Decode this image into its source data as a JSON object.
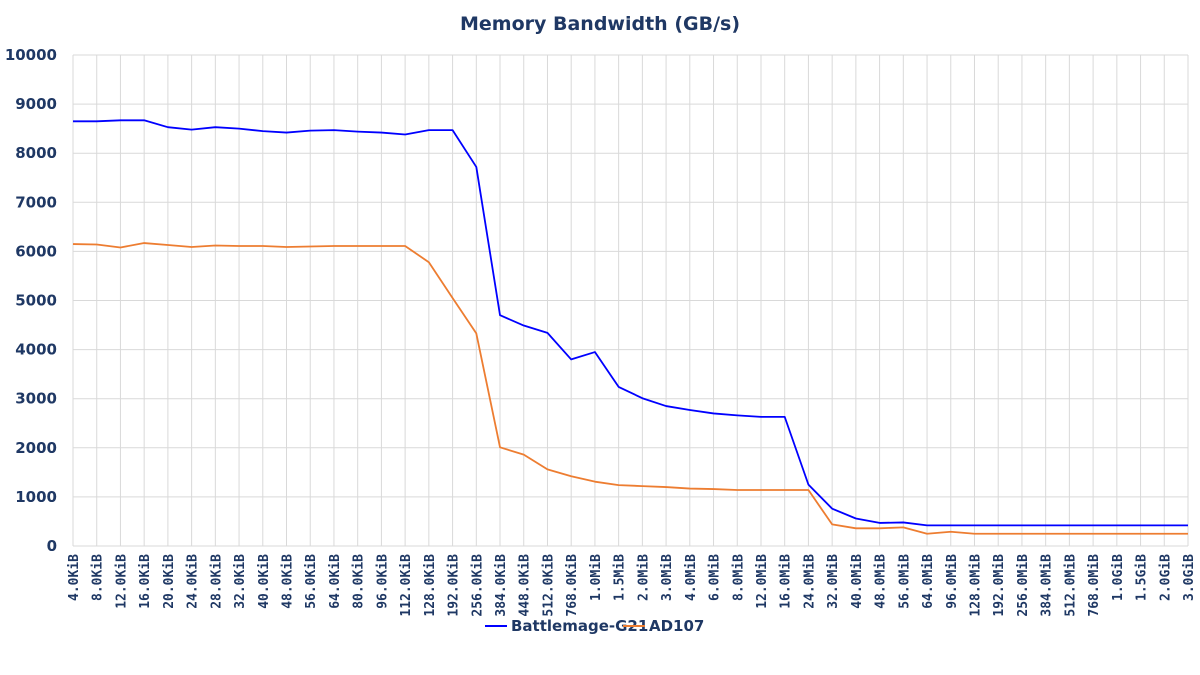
{
  "chart_data": {
    "type": "line",
    "title": "Memory Bandwidth (GB/s)",
    "xlabel": "",
    "ylabel": "",
    "ylim": [
      0,
      10000
    ],
    "yticks": [
      "0",
      "1000",
      "2000",
      "3000",
      "4000",
      "5000",
      "6000",
      "7000",
      "8000",
      "9000",
      "10000"
    ],
    "grid": true,
    "legend_position": "bottom",
    "categories": [
      "4.0KiB",
      "8.0KiB",
      "12.0KiB",
      "16.0KiB",
      "20.0KiB",
      "24.0KiB",
      "28.0KiB",
      "32.0KiB",
      "40.0KiB",
      "48.0KiB",
      "56.0KiB",
      "64.0KiB",
      "80.0KiB",
      "96.0KiB",
      "112.0KiB",
      "128.0KiB",
      "192.0KiB",
      "256.0KiB",
      "384.0KiB",
      "448.0KiB",
      "512.0KiB",
      "768.0KiB",
      "1.0MiB",
      "1.5MiB",
      "2.0MiB",
      "3.0MiB",
      "4.0MiB",
      "6.0MiB",
      "8.0MiB",
      "12.0MiB",
      "16.0MiB",
      "24.0MiB",
      "32.0MiB",
      "40.0MiB",
      "48.0MiB",
      "56.0MiB",
      "64.0MiB",
      "96.0MiB",
      "128.0MiB",
      "192.0MiB",
      "256.0MiB",
      "384.0MiB",
      "512.0MiB",
      "768.0MiB",
      "1.0GiB",
      "1.5GiB",
      "2.0GiB",
      "3.0GiB"
    ],
    "series": [
      {
        "name": "Battlemage-G21",
        "color": "#0000ff",
        "values": [
          8650,
          8650,
          8670,
          8670,
          8530,
          8480,
          8530,
          8500,
          8450,
          8420,
          8460,
          8470,
          8440,
          8420,
          8380,
          8470,
          8470,
          7720,
          4700,
          4490,
          4340,
          3800,
          3950,
          3240,
          3010,
          2850,
          2770,
          2700,
          2660,
          2630,
          2630,
          1250,
          760,
          560,
          470,
          480,
          420,
          420,
          420,
          420,
          420,
          420,
          420,
          420,
          420,
          420,
          420,
          420
        ]
      },
      {
        "name": "AD107",
        "color": "#ed7d31",
        "values": [
          6150,
          6140,
          6080,
          6170,
          6130,
          6090,
          6120,
          6110,
          6110,
          6090,
          6100,
          6110,
          6110,
          6110,
          6110,
          5780,
          5050,
          4330,
          2010,
          1860,
          1560,
          1420,
          1310,
          1240,
          1220,
          1200,
          1170,
          1160,
          1140,
          1140,
          1140,
          1140,
          440,
          360,
          360,
          380,
          250,
          290,
          250,
          250,
          250,
          250,
          250,
          250,
          250,
          250,
          250,
          250
        ]
      }
    ]
  }
}
